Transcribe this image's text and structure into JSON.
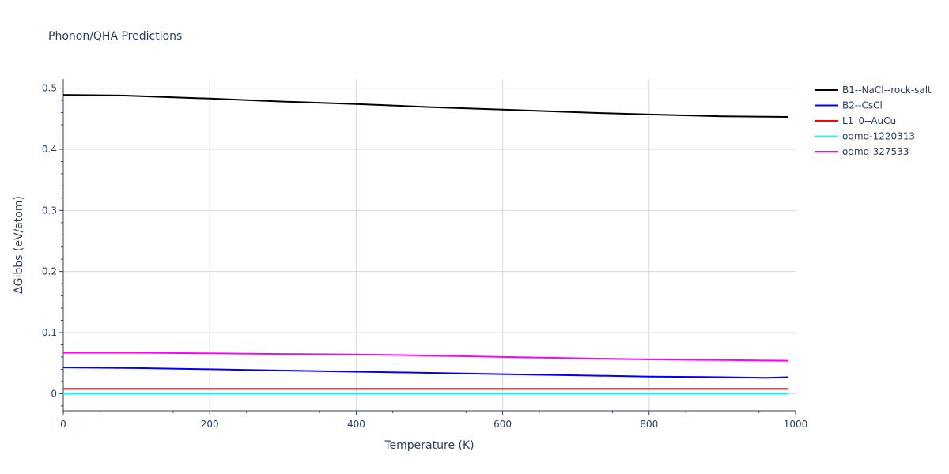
{
  "chart_data": {
    "type": "line",
    "title": "Phonon/QHA Predictions",
    "xlabel": "Temperature (K)",
    "ylabel": "ΔGibbs (eV/atom)",
    "xlim": [
      0,
      1000
    ],
    "ylim": [
      -0.028,
      0.515
    ],
    "x_ticks": [
      0,
      200,
      400,
      600,
      800,
      1000
    ],
    "x_tick_labels": [
      "0",
      "200",
      "400",
      "600",
      "800",
      "1000"
    ],
    "y_ticks": [
      0,
      0.1,
      0.2,
      0.3,
      0.4,
      0.5
    ],
    "y_tick_labels": [
      "0",
      "0.1",
      "0.2",
      "0.3",
      "0.4",
      "0.5"
    ],
    "grid": true,
    "legend_position": "top-right",
    "series": [
      {
        "name": "B1--NaCl--rock-salt",
        "color": "#000000",
        "x": [
          0,
          80,
          200,
          300,
          400,
          500,
          600,
          740,
          800,
          900,
          990
        ],
        "y": [
          0.489,
          0.488,
          0.483,
          0.478,
          0.474,
          0.469,
          0.465,
          0.459,
          0.457,
          0.454,
          0.453
        ]
      },
      {
        "name": "B2--CsCl",
        "color": "#0000ff",
        "x": [
          0,
          100,
          200,
          300,
          400,
          500,
          600,
          700,
          800,
          900,
          960,
          990
        ],
        "y": [
          0.043,
          0.042,
          0.04,
          0.038,
          0.036,
          0.034,
          0.032,
          0.03,
          0.028,
          0.027,
          0.026,
          0.027
        ]
      },
      {
        "name": "L1_0--AuCu",
        "color": "#ff0000",
        "x": [
          0,
          200,
          400,
          600,
          800,
          990
        ],
        "y": [
          0.008,
          0.008,
          0.008,
          0.008,
          0.008,
          0.008
        ]
      },
      {
        "name": "oqmd-1220313",
        "color": "#00ffff",
        "x": [
          0,
          200,
          400,
          600,
          800,
          990
        ],
        "y": [
          0.0,
          0.0,
          0.0,
          0.0,
          0.0,
          0.0
        ]
      },
      {
        "name": "oqmd-327533",
        "color": "#ff00ff",
        "x": [
          0,
          100,
          200,
          300,
          400,
          470,
          600,
          700,
          800,
          900,
          990
        ],
        "y": [
          0.067,
          0.067,
          0.066,
          0.065,
          0.064,
          0.063,
          0.06,
          0.058,
          0.056,
          0.055,
          0.054
        ]
      }
    ]
  }
}
